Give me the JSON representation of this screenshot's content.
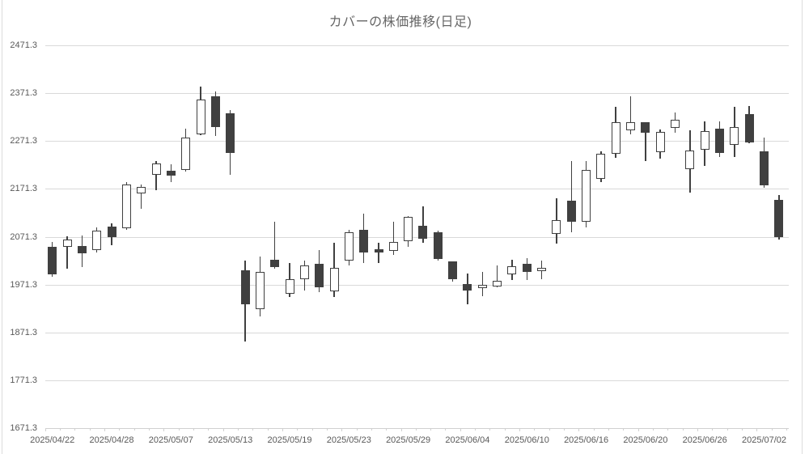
{
  "title": "カバーの株価推移(日足)",
  "y_axis": {
    "labels": [
      "2471.3",
      "2371.3",
      "2271.3",
      "2171.3",
      "2071.3",
      "1971.3",
      "1871.3",
      "1771.3",
      "1671.3"
    ],
    "min": 1671.3,
    "max": 2471.3,
    "step": 100
  },
  "x_axis": {
    "labels": [
      "2025/04/22",
      "2025/04/28",
      "2025/05/07",
      "2025/05/13",
      "2025/05/19",
      "2025/05/23",
      "2025/05/29",
      "2025/06/04",
      "2025/06/10",
      "2025/06/16",
      "2025/06/20",
      "2025/06/26",
      "2025/07/02"
    ],
    "label_every": 4
  },
  "chart_data": {
    "type": "candlestick",
    "title": "カバーの株価推移(日足)",
    "ylabel": "",
    "xlabel": "",
    "ylim": [
      1671.3,
      2471.3
    ],
    "y_tick_step": 100,
    "grid": true,
    "legend": false,
    "colors": {
      "up_fill": "#ffffff",
      "down_fill": "#404040",
      "outline": "#404040",
      "wick": "#404040",
      "gridline": "#d9d9d9",
      "text": "#595959",
      "title_text": "#666666"
    },
    "candles": [
      {
        "date": "2025/04/22",
        "open": 2050,
        "high": 2061,
        "low": 1988,
        "close": 1993
      },
      {
        "date": "2025/04/23",
        "open": 2050,
        "high": 2073,
        "low": 2004,
        "close": 2065
      },
      {
        "date": "2025/04/24",
        "open": 2052,
        "high": 2074,
        "low": 2007,
        "close": 2037
      },
      {
        "date": "2025/04/25",
        "open": 2044,
        "high": 2090,
        "low": 2038,
        "close": 2084
      },
      {
        "date": "2025/04/28",
        "open": 2092,
        "high": 2100,
        "low": 2053,
        "close": 2070
      },
      {
        "date": "2025/04/30",
        "open": 2089,
        "high": 2186,
        "low": 2085,
        "close": 2180
      },
      {
        "date": "2025/05/01",
        "open": 2162,
        "high": 2180,
        "low": 2129,
        "close": 2175
      },
      {
        "date": "2025/05/02",
        "open": 2201,
        "high": 2230,
        "low": 2168,
        "close": 2225
      },
      {
        "date": "2025/05/07",
        "open": 2209,
        "high": 2223,
        "low": 2186,
        "close": 2199
      },
      {
        "date": "2025/05/08",
        "open": 2211,
        "high": 2298,
        "low": 2207,
        "close": 2279
      },
      {
        "date": "2025/05/09",
        "open": 2286,
        "high": 2385,
        "low": 2284,
        "close": 2358
      },
      {
        "date": "2025/05/12",
        "open": 2364,
        "high": 2375,
        "low": 2282,
        "close": 2301
      },
      {
        "date": "2025/05/13",
        "open": 2330,
        "high": 2336,
        "low": 2200,
        "close": 2247
      },
      {
        "date": "2025/05/14",
        "open": 2002,
        "high": 2021,
        "low": 1852,
        "close": 1931
      },
      {
        "date": "2025/05/15",
        "open": 1920,
        "high": 2030,
        "low": 1904,
        "close": 1998
      },
      {
        "date": "2025/05/16",
        "open": 2023,
        "high": 2102,
        "low": 2005,
        "close": 2008
      },
      {
        "date": "2025/05/19",
        "open": 1952,
        "high": 2016,
        "low": 1945,
        "close": 1983
      },
      {
        "date": "2025/05/20",
        "open": 1983,
        "high": 2021,
        "low": 1959,
        "close": 2011
      },
      {
        "date": "2025/05/21",
        "open": 2015,
        "high": 2043,
        "low": 1956,
        "close": 1965
      },
      {
        "date": "2025/05/22",
        "open": 1957,
        "high": 2058,
        "low": 1946,
        "close": 2006
      },
      {
        "date": "2025/05/23",
        "open": 2021,
        "high": 2086,
        "low": 2011,
        "close": 2081
      },
      {
        "date": "2025/05/26",
        "open": 2086,
        "high": 2120,
        "low": 2017,
        "close": 2038
      },
      {
        "date": "2025/05/27",
        "open": 2046,
        "high": 2058,
        "low": 2017,
        "close": 2038
      },
      {
        "date": "2025/05/28",
        "open": 2042,
        "high": 2103,
        "low": 2034,
        "close": 2060
      },
      {
        "date": "2025/05/29",
        "open": 2061,
        "high": 2114,
        "low": 2050,
        "close": 2113
      },
      {
        "date": "2025/05/30",
        "open": 2095,
        "high": 2134,
        "low": 2058,
        "close": 2068
      },
      {
        "date": "2025/06/02",
        "open": 2081,
        "high": 2084,
        "low": 2021,
        "close": 2025
      },
      {
        "date": "2025/06/03",
        "open": 2019,
        "high": 2019,
        "low": 1978,
        "close": 1983
      },
      {
        "date": "2025/06/04",
        "open": 1973,
        "high": 1995,
        "low": 1930,
        "close": 1958
      },
      {
        "date": "2025/06/05",
        "open": 1964,
        "high": 1998,
        "low": 1946,
        "close": 1971
      },
      {
        "date": "2025/06/06",
        "open": 1968,
        "high": 2011,
        "low": 1966,
        "close": 1979
      },
      {
        "date": "2025/06/09",
        "open": 1993,
        "high": 2023,
        "low": 1980,
        "close": 2010
      },
      {
        "date": "2025/06/10",
        "open": 2014,
        "high": 2026,
        "low": 1980,
        "close": 1998
      },
      {
        "date": "2025/06/11",
        "open": 2000,
        "high": 2022,
        "low": 1983,
        "close": 2006
      },
      {
        "date": "2025/06/12",
        "open": 2078,
        "high": 2152,
        "low": 2057,
        "close": 2106
      },
      {
        "date": "2025/06/13",
        "open": 2147,
        "high": 2230,
        "low": 2081,
        "close": 2102
      },
      {
        "date": "2025/06/16",
        "open": 2103,
        "high": 2230,
        "low": 2090,
        "close": 2211
      },
      {
        "date": "2025/06/17",
        "open": 2192,
        "high": 2249,
        "low": 2186,
        "close": 2245
      },
      {
        "date": "2025/06/18",
        "open": 2245,
        "high": 2343,
        "low": 2237,
        "close": 2311
      },
      {
        "date": "2025/06/19",
        "open": 2294,
        "high": 2365,
        "low": 2285,
        "close": 2310
      },
      {
        "date": "2025/06/20",
        "open": 2310,
        "high": 2310,
        "low": 2230,
        "close": 2289
      },
      {
        "date": "2025/06/23",
        "open": 2248,
        "high": 2296,
        "low": 2234,
        "close": 2291
      },
      {
        "date": "2025/06/24",
        "open": 2298,
        "high": 2331,
        "low": 2289,
        "close": 2315
      },
      {
        "date": "2025/06/25",
        "open": 2212,
        "high": 2294,
        "low": 2164,
        "close": 2252
      },
      {
        "date": "2025/06/26",
        "open": 2253,
        "high": 2312,
        "low": 2219,
        "close": 2292
      },
      {
        "date": "2025/06/27",
        "open": 2297,
        "high": 2313,
        "low": 2237,
        "close": 2247
      },
      {
        "date": "2025/06/30",
        "open": 2264,
        "high": 2343,
        "low": 2238,
        "close": 2300
      },
      {
        "date": "2025/07/01",
        "open": 2327,
        "high": 2345,
        "low": 2266,
        "close": 2268
      },
      {
        "date": "2025/07/02",
        "open": 2249,
        "high": 2278,
        "low": 2174,
        "close": 2179
      },
      {
        "date": "2025/07/03",
        "open": 2149,
        "high": 2158,
        "low": 2065,
        "close": 2071
      }
    ]
  }
}
